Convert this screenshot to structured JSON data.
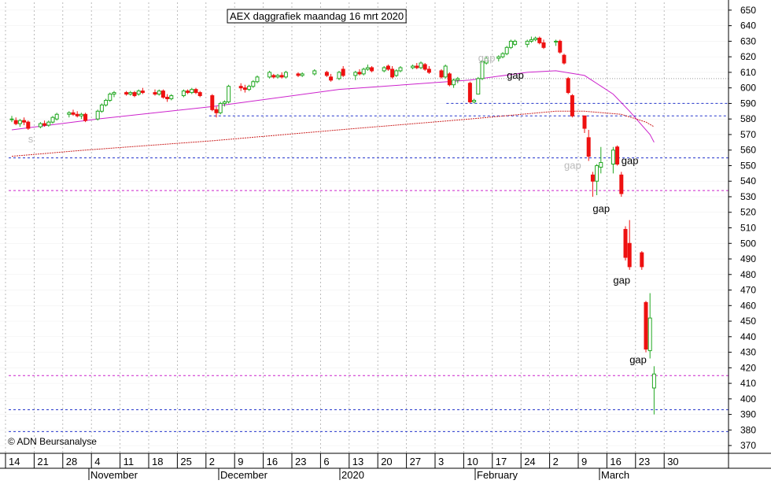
{
  "chart_data": {
    "type": "candlestick",
    "title": "AEX daggrafiek maandag 16 mrt 2020",
    "copyright": "© ADN Beursanalyse",
    "ylim": [
      365,
      655
    ],
    "y_ticks": [
      370,
      380,
      390,
      400,
      410,
      420,
      430,
      440,
      450,
      460,
      470,
      480,
      490,
      500,
      510,
      520,
      530,
      540,
      550,
      560,
      570,
      580,
      590,
      600,
      610,
      620,
      630,
      640,
      650
    ],
    "x_tick_labels": [
      "14",
      "21",
      "28",
      "4",
      "11",
      "18",
      "25",
      "2",
      "9",
      "16",
      "23",
      "6",
      "13",
      "20",
      "27",
      "3",
      "10",
      "17",
      "24",
      "2",
      "9",
      "16",
      "23",
      "30"
    ],
    "month_labels": [
      "November",
      "December",
      "2020",
      "February",
      "March"
    ],
    "candles": [
      {
        "date": "2019-10-14",
        "o": 580,
        "h": 582,
        "l": 578,
        "c": 580
      },
      {
        "date": "2019-10-15",
        "o": 579,
        "h": 581,
        "l": 576,
        "c": 577
      },
      {
        "date": "2019-10-16",
        "o": 577,
        "h": 580,
        "l": 575,
        "c": 579
      },
      {
        "date": "2019-10-17",
        "o": 579,
        "h": 581,
        "l": 576,
        "c": 578
      },
      {
        "date": "2019-10-18",
        "o": 578,
        "h": 579,
        "l": 573,
        "c": 574
      },
      {
        "date": "2019-10-21",
        "o": 575,
        "h": 578,
        "l": 574,
        "c": 577
      },
      {
        "date": "2019-10-22",
        "o": 577,
        "h": 579,
        "l": 575,
        "c": 576
      },
      {
        "date": "2019-10-23",
        "o": 576,
        "h": 579,
        "l": 575,
        "c": 578
      },
      {
        "date": "2019-10-24",
        "o": 578,
        "h": 582,
        "l": 577,
        "c": 581
      },
      {
        "date": "2019-10-25",
        "o": 580,
        "h": 584,
        "l": 579,
        "c": 583
      },
      {
        "date": "2019-10-28",
        "o": 583,
        "h": 585,
        "l": 581,
        "c": 584
      },
      {
        "date": "2019-10-29",
        "o": 584,
        "h": 586,
        "l": 582,
        "c": 583
      },
      {
        "date": "2019-10-30",
        "o": 583,
        "h": 585,
        "l": 581,
        "c": 582
      },
      {
        "date": "2019-10-31",
        "o": 582,
        "h": 584,
        "l": 580,
        "c": 583
      },
      {
        "date": "2019-11-01",
        "o": 583,
        "h": 584,
        "l": 578,
        "c": 579
      },
      {
        "date": "2019-11-04",
        "o": 580,
        "h": 586,
        "l": 579,
        "c": 585
      },
      {
        "date": "2019-11-05",
        "o": 585,
        "h": 590,
        "l": 584,
        "c": 589
      },
      {
        "date": "2019-11-06",
        "o": 589,
        "h": 593,
        "l": 588,
        "c": 592
      },
      {
        "date": "2019-11-07",
        "o": 592,
        "h": 597,
        "l": 591,
        "c": 596
      },
      {
        "date": "2019-11-08",
        "o": 596,
        "h": 598,
        "l": 594,
        "c": 597
      },
      {
        "date": "2019-11-11",
        "o": 597,
        "h": 598,
        "l": 595,
        "c": 596
      },
      {
        "date": "2019-11-12",
        "o": 596,
        "h": 598,
        "l": 595,
        "c": 597
      },
      {
        "date": "2019-11-13",
        "o": 597,
        "h": 598,
        "l": 594,
        "c": 595
      },
      {
        "date": "2019-11-14",
        "o": 596,
        "h": 599,
        "l": 595,
        "c": 598
      },
      {
        "date": "2019-11-15",
        "o": 598,
        "h": 600,
        "l": 596,
        "c": 597
      },
      {
        "date": "2019-11-18",
        "o": 597,
        "h": 599,
        "l": 595,
        "c": 596
      },
      {
        "date": "2019-11-19",
        "o": 596,
        "h": 599,
        "l": 595,
        "c": 598
      },
      {
        "date": "2019-11-20",
        "o": 598,
        "h": 599,
        "l": 593,
        "c": 594
      },
      {
        "date": "2019-11-21",
        "o": 594,
        "h": 596,
        "l": 591,
        "c": 593
      },
      {
        "date": "2019-11-22",
        "o": 593,
        "h": 596,
        "l": 592,
        "c": 595
      },
      {
        "date": "2019-11-25",
        "o": 595,
        "h": 599,
        "l": 594,
        "c": 598
      },
      {
        "date": "2019-11-26",
        "o": 598,
        "h": 599,
        "l": 596,
        "c": 597
      },
      {
        "date": "2019-11-27",
        "o": 597,
        "h": 600,
        "l": 596,
        "c": 599
      },
      {
        "date": "2019-11-28",
        "o": 599,
        "h": 600,
        "l": 596,
        "c": 597
      },
      {
        "date": "2019-11-29",
        "o": 597,
        "h": 598,
        "l": 594,
        "c": 595
      },
      {
        "date": "2019-12-02",
        "o": 595,
        "h": 596,
        "l": 585,
        "c": 586
      },
      {
        "date": "2019-12-03",
        "o": 586,
        "h": 588,
        "l": 581,
        "c": 584
      },
      {
        "date": "2019-12-04",
        "o": 584,
        "h": 591,
        "l": 583,
        "c": 590
      },
      {
        "date": "2019-12-05",
        "o": 590,
        "h": 592,
        "l": 588,
        "c": 591
      },
      {
        "date": "2019-12-06",
        "o": 591,
        "h": 602,
        "l": 590,
        "c": 601
      },
      {
        "date": "2019-12-09",
        "o": 601,
        "h": 603,
        "l": 598,
        "c": 600
      },
      {
        "date": "2019-12-10",
        "o": 600,
        "h": 602,
        "l": 597,
        "c": 599
      },
      {
        "date": "2019-12-11",
        "o": 599,
        "h": 602,
        "l": 598,
        "c": 601
      },
      {
        "date": "2019-12-12",
        "o": 601,
        "h": 605,
        "l": 600,
        "c": 604
      },
      {
        "date": "2019-12-13",
        "o": 604,
        "h": 608,
        "l": 603,
        "c": 607
      },
      {
        "date": "2019-12-16",
        "o": 607,
        "h": 611,
        "l": 606,
        "c": 610
      },
      {
        "date": "2019-12-17",
        "o": 608,
        "h": 609,
        "l": 606,
        "c": 607
      },
      {
        "date": "2019-12-18",
        "o": 607,
        "h": 609,
        "l": 606,
        "c": 608
      },
      {
        "date": "2019-12-19",
        "o": 608,
        "h": 610,
        "l": 606,
        "c": 607
      },
      {
        "date": "2019-12-20",
        "o": 607,
        "h": 611,
        "l": 606,
        "c": 610
      },
      {
        "date": "2019-12-23",
        "o": 609,
        "h": 610,
        "l": 607,
        "c": 608
      },
      {
        "date": "2019-12-24",
        "o": 608,
        "h": 610,
        "l": 607,
        "c": 609
      },
      {
        "date": "2019-12-27",
        "o": 609,
        "h": 612,
        "l": 608,
        "c": 611
      },
      {
        "date": "2019-12-30",
        "o": 610,
        "h": 611,
        "l": 607,
        "c": 608
      },
      {
        "date": "2019-12-31",
        "o": 607,
        "h": 609,
        "l": 604,
        "c": 605
      },
      {
        "date": "2020-01-02",
        "o": 606,
        "h": 611,
        "l": 605,
        "c": 610
      },
      {
        "date": "2020-01-03",
        "o": 612,
        "h": 614,
        "l": 607,
        "c": 608
      },
      {
        "date": "2020-01-06",
        "o": 608,
        "h": 611,
        "l": 605,
        "c": 610
      },
      {
        "date": "2020-01-07",
        "o": 610,
        "h": 612,
        "l": 608,
        "c": 609
      },
      {
        "date": "2020-01-08",
        "o": 609,
        "h": 613,
        "l": 608,
        "c": 612
      },
      {
        "date": "2020-01-09",
        "o": 612,
        "h": 615,
        "l": 611,
        "c": 613
      },
      {
        "date": "2020-01-10",
        "o": 613,
        "h": 614,
        "l": 610,
        "c": 611
      },
      {
        "date": "2020-01-13",
        "o": 611,
        "h": 614,
        "l": 610,
        "c": 613
      },
      {
        "date": "2020-01-14",
        "o": 614,
        "h": 615,
        "l": 611,
        "c": 612
      },
      {
        "date": "2020-01-15",
        "o": 612,
        "h": 614,
        "l": 606,
        "c": 607
      },
      {
        "date": "2020-01-16",
        "o": 608,
        "h": 612,
        "l": 607,
        "c": 611
      },
      {
        "date": "2020-01-17",
        "o": 611,
        "h": 614,
        "l": 610,
        "c": 613
      },
      {
        "date": "2020-01-20",
        "o": 613,
        "h": 615,
        "l": 612,
        "c": 614
      },
      {
        "date": "2020-01-21",
        "o": 614,
        "h": 616,
        "l": 612,
        "c": 613
      },
      {
        "date": "2020-01-22",
        "o": 613,
        "h": 617,
        "l": 612,
        "c": 616
      },
      {
        "date": "2020-01-23",
        "o": 615,
        "h": 616,
        "l": 611,
        "c": 612
      },
      {
        "date": "2020-01-24",
        "o": 612,
        "h": 614,
        "l": 609,
        "c": 610
      },
      {
        "date": "2020-01-27",
        "o": 611,
        "h": 612,
        "l": 606,
        "c": 607
      },
      {
        "date": "2020-01-28",
        "o": 607,
        "h": 615,
        "l": 606,
        "c": 614
      },
      {
        "date": "2020-01-29",
        "o": 609,
        "h": 610,
        "l": 601,
        "c": 602
      },
      {
        "date": "2020-01-30",
        "o": 602,
        "h": 606,
        "l": 600,
        "c": 605
      },
      {
        "date": "2020-01-31",
        "o": 605,
        "h": 607,
        "l": 603,
        "c": 606
      },
      {
        "date": "2020-02-03",
        "o": 603,
        "h": 604,
        "l": 590,
        "c": 591
      },
      {
        "date": "2020-02-04",
        "o": 591,
        "h": 593,
        "l": 590,
        "c": 592
      },
      {
        "date": "2020-02-05",
        "o": 596,
        "h": 607,
        "l": 596,
        "c": 606
      },
      {
        "date": "2020-02-06",
        "o": 606,
        "h": 618,
        "l": 605,
        "c": 617
      },
      {
        "date": "2020-02-07",
        "o": 616,
        "h": 620,
        "l": 615,
        "c": 619
      },
      {
        "date": "2020-02-10",
        "o": 619,
        "h": 621,
        "l": 617,
        "c": 620
      },
      {
        "date": "2020-02-11",
        "o": 620,
        "h": 623,
        "l": 619,
        "c": 622
      },
      {
        "date": "2020-02-12",
        "o": 622,
        "h": 627,
        "l": 621,
        "c": 626
      },
      {
        "date": "2020-02-13",
        "o": 626,
        "h": 631,
        "l": 625,
        "c": 630
      },
      {
        "date": "2020-02-14",
        "o": 628,
        "h": 631,
        "l": 627,
        "c": 630
      },
      {
        "date": "2020-02-17",
        "o": 628,
        "h": 631,
        "l": 626,
        "c": 630
      },
      {
        "date": "2020-02-18",
        "o": 630,
        "h": 633,
        "l": 629,
        "c": 631
      },
      {
        "date": "2020-02-19",
        "o": 631,
        "h": 633,
        "l": 630,
        "c": 632
      },
      {
        "date": "2020-02-20",
        "o": 632,
        "h": 633,
        "l": 628,
        "c": 629
      },
      {
        "date": "2020-02-21",
        "o": 629,
        "h": 631,
        "l": 625,
        "c": 626
      },
      {
        "date": "2020-02-24",
        "o": 630,
        "h": 631,
        "l": 627,
        "c": 630
      },
      {
        "date": "2020-02-25",
        "o": 630,
        "h": 631,
        "l": 622,
        "c": 623
      },
      {
        "date": "2020-02-26",
        "o": 621,
        "h": 622,
        "l": 615,
        "c": 616
      },
      {
        "date": "2020-02-27",
        "o": 606,
        "h": 607,
        "l": 596,
        "c": 597
      },
      {
        "date": "2020-02-28",
        "o": 595,
        "h": 596,
        "l": 581,
        "c": 582
      },
      {
        "date": "2020-03-02",
        "o": 582,
        "h": 582,
        "l": 571,
        "c": 574
      },
      {
        "date": "2020-03-03",
        "o": 568,
        "h": 573,
        "l": 553,
        "c": 556
      },
      {
        "date": "2020-03-04",
        "o": 544,
        "h": 546,
        "l": 530,
        "c": 540
      },
      {
        "date": "2020-03-05",
        "o": 540,
        "h": 551,
        "l": 531,
        "c": 550
      },
      {
        "date": "2020-03-06",
        "o": 549,
        "h": 562,
        "l": 545,
        "c": 552
      },
      {
        "date": "2020-03-09",
        "o": 551,
        "h": 562,
        "l": 545,
        "c": 560
      },
      {
        "date": "2020-03-10",
        "o": 562,
        "h": 563,
        "l": 550,
        "c": 551
      },
      {
        "date": "2020-03-11",
        "o": 544,
        "h": 546,
        "l": 530,
        "c": 532
      },
      {
        "date": "2020-03-12",
        "o": 509,
        "h": 511,
        "l": 489,
        "c": 491
      },
      {
        "date": "2020-03-13",
        "o": 500,
        "h": 515,
        "l": 483,
        "c": 485
      },
      {
        "date": "2020-03-16",
        "o": 494,
        "h": 495,
        "l": 483,
        "c": 485
      },
      {
        "date": "2020-03-17",
        "o": 462,
        "h": 463,
        "l": 430,
        "c": 432
      },
      {
        "date": "2020-03-18",
        "o": 431,
        "h": 468,
        "l": 426,
        "c": 452
      },
      {
        "date": "2020-03-19",
        "o": 407,
        "h": 421,
        "l": 390,
        "c": 416
      }
    ],
    "horizontal_lines": [
      {
        "value": 606,
        "color": "#9a9a9a",
        "style": "dotted",
        "from": "2020-01-02",
        "to": "2020-03-19",
        "extend": true
      },
      {
        "value": 590,
        "color": "#2233cc",
        "style": "dashed",
        "from": "2020-01-29",
        "extend": true
      },
      {
        "value": 582,
        "color": "#2233cc",
        "style": "dashed",
        "from": "2019-12-02",
        "extend": true
      },
      {
        "value": 555,
        "color": "#2233cc",
        "style": "dashed",
        "from": "2019-10-14",
        "extend": true
      },
      {
        "value": 534,
        "color": "#cc22cc",
        "style": "dashed",
        "from": "2019-10-14",
        "extend": true
      },
      {
        "value": 415,
        "color": "#cc22cc",
        "style": "dashed",
        "from": "2019-10-14",
        "extend": true
      },
      {
        "value": 393,
        "color": "#2233cc",
        "style": "dashed",
        "from": "2019-10-14",
        "extend": true
      },
      {
        "value": 379,
        "color": "#2233cc",
        "style": "dashed",
        "from": "2019-10-14",
        "extend": true
      }
    ],
    "moving_averages": [
      {
        "color": "#cc22cc",
        "points": [
          [
            "2019-10-14",
            573
          ],
          [
            "2019-11-04",
            580
          ],
          [
            "2019-12-02",
            588
          ],
          [
            "2020-01-02",
            599
          ],
          [
            "2020-02-03",
            605
          ],
          [
            "2020-02-17",
            610
          ],
          [
            "2020-02-24",
            611
          ],
          [
            "2020-03-02",
            608
          ],
          [
            "2020-03-09",
            596
          ],
          [
            "2020-03-13",
            585
          ],
          [
            "2020-03-18",
            570
          ],
          [
            "2020-03-19",
            565
          ]
        ]
      },
      {
        "color": "#cc2222",
        "points": [
          [
            "2019-10-14",
            556
          ],
          [
            "2019-11-01",
            560
          ],
          [
            "2019-12-02",
            566
          ],
          [
            "2020-01-02",
            573
          ],
          [
            "2020-02-03",
            580
          ],
          [
            "2020-02-24",
            585
          ],
          [
            "2020-03-02",
            585
          ],
          [
            "2020-03-11",
            583
          ],
          [
            "2020-03-17",
            578
          ],
          [
            "2020-03-19",
            575
          ]
        ]
      }
    ],
    "annotations": [
      {
        "text": "gap",
        "date": "2020-02-12",
        "value": 606,
        "color": "#000000"
      },
      {
        "text": "gap",
        "date": "2020-02-26",
        "value": 548,
        "color": "#bbbbbb"
      },
      {
        "text": "gap",
        "date": "2020-03-11",
        "value": 551,
        "color": "#000000"
      },
      {
        "text": "gap",
        "date": "2020-03-04",
        "value": 520,
        "color": "#000000"
      },
      {
        "text": "gap",
        "date": "2020-03-09",
        "value": 474,
        "color": "#000000"
      },
      {
        "text": "gap",
        "date": "2020-03-13",
        "value": 423,
        "color": "#000000"
      },
      {
        "text": "gap",
        "date": "2020-02-05",
        "value": 617,
        "color": "#bbbbbb"
      },
      {
        "text": "s",
        "date": "2019-10-18",
        "value": 565,
        "color": "#bbbbbb"
      }
    ],
    "colors": {
      "up": "#22a822",
      "down": "#ee1111",
      "grid": "#aaaaaa",
      "axis": "#000000"
    }
  }
}
